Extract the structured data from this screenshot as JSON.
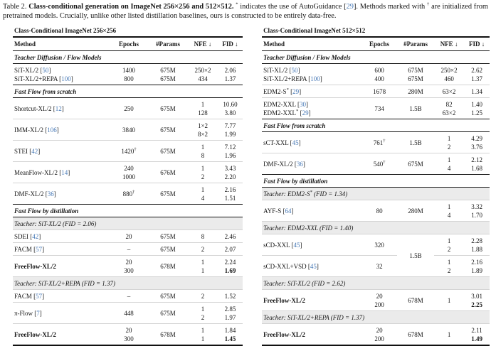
{
  "caption": "Table 2. **Class-conditional generation on ImageNet 256×256 and 512×512.** ^{*} indicates the use of AutoGuidance [29]. Methods marked with ^{†} are initialized from pretrained models. Crucially, unlike other listed distillation baselines, ours is constructed to be entirely data-free.",
  "columns": [
    "Method",
    "Epochs",
    "#Params",
    "NFE ↓",
    "FID ↓"
  ],
  "accent_colors": {
    "citation_blue": "#4577b5",
    "teacher_band_gray": "#ebebeb"
  },
  "tables": [
    {
      "title": "Class-Conditional ImageNet 256×256",
      "rows": [
        {
          "type": "section",
          "first": true,
          "label": "Teacher Diffusion / Flow Models"
        },
        {
          "type": "row",
          "method": "SiT-XL/2 [50]\nSiT-XL/2+REPA [100]",
          "epochs": "1400\n800",
          "params": "675M\n675M",
          "nfe": "250×2\n434",
          "fid": "2.06\n1.37"
        },
        {
          "type": "section",
          "label": "Fast Flow from scratch"
        },
        {
          "type": "row",
          "method": "Shortcut-XL/2 [12]",
          "epochs": "250",
          "params": "675M",
          "nfe": "1\n128",
          "fid": "10.60\n3.80"
        },
        {
          "type": "row",
          "method": "IMM-XL/2 [106]",
          "epochs": "3840",
          "params": "675M",
          "nfe": "1×2\n8×2",
          "fid": "7.77\n1.99"
        },
        {
          "type": "row",
          "method": "STEI [42]",
          "epochs": "1420^{†}",
          "params": "675M",
          "nfe": "1\n8",
          "fid": "7.12\n1.96"
        },
        {
          "type": "row",
          "method": "MeanFlow-XL/2 [14]",
          "epochs": "240\n1000",
          "params": "676M",
          "nfe": "1\n2",
          "fid": "3.43\n2.20"
        },
        {
          "type": "row",
          "method": "DMF-XL/2 [36]",
          "epochs": "880^{†}",
          "params": "675M",
          "nfe": "1\n4",
          "fid": "2.16\n1.51"
        },
        {
          "type": "section",
          "label": "Fast Flow by distillation"
        },
        {
          "type": "teacher",
          "label": "Teacher: SiT-XL/2 (FID = 2.06)"
        },
        {
          "type": "row",
          "method": "SDEI [42]",
          "epochs": "20",
          "params": "675M",
          "nfe": "8",
          "fid": "2.46"
        },
        {
          "type": "row",
          "method": "FACM [57]",
          "epochs": "–",
          "params": "675M",
          "nfe": "2",
          "fid": "2.07"
        },
        {
          "type": "row",
          "method": "**FreeFlow-XL/2**",
          "epochs": "20\n300",
          "params": "678M",
          "nfe": "1\n1",
          "fid": "2.24\n**1.69**"
        },
        {
          "type": "teacher",
          "label": "Teacher: SiT-XL/2+REPA (FID = 1.37)"
        },
        {
          "type": "row",
          "method": "FACM [57]",
          "epochs": "–",
          "params": "675M",
          "nfe": "2",
          "fid": "1.52"
        },
        {
          "type": "row",
          "method": "π-Flow [7]",
          "epochs": "448",
          "params": "675M",
          "nfe": "1\n2",
          "fid": "2.85\n1.97"
        },
        {
          "type": "row",
          "method": "**FreeFlow-XL/2**",
          "epochs": "20\n300",
          "params": "678M",
          "nfe": "1\n1",
          "fid": "1.84\n**1.45**"
        }
      ]
    },
    {
      "title": "Class-Conditional ImageNet 512×512",
      "rows": [
        {
          "type": "section",
          "first": true,
          "label": "Teacher Diffusion / Flow Models"
        },
        {
          "type": "row",
          "method": "SiT-XL/2 [50]\nSiT-XL/2+REPA [100]",
          "epochs": "600\n400",
          "params": "675M\n675M",
          "nfe": "250×2\n460",
          "fid": "2.62\n1.37"
        },
        {
          "type": "row",
          "method": "EDM2-S^{*} [29]",
          "epochs": "1678",
          "params": "280M",
          "nfe": "63×2",
          "fid": "1.34"
        },
        {
          "type": "row",
          "method": "EDM2-XXL [30]\nEDM2-XXL^{*} [29]",
          "epochs": "734",
          "params": "1.5B",
          "nfe": "82\n63×2",
          "fid": "1.40\n1.25"
        },
        {
          "type": "section",
          "label": "Fast Flow from scratch"
        },
        {
          "type": "row",
          "method": "sCT-XXL [45]",
          "epochs": "761^{†}",
          "params": "1.5B",
          "nfe": "1\n2",
          "fid": "4.29\n3.76"
        },
        {
          "type": "row",
          "method": "DMF-XL/2 [36]",
          "epochs": "540^{†}",
          "params": "675M",
          "nfe": "1\n4",
          "fid": "2.12\n1.68"
        },
        {
          "type": "section",
          "label": "Fast Flow by distillation"
        },
        {
          "type": "teacher",
          "label": "Teacher: EDM2-S^{*} (FID = 1.34)"
        },
        {
          "type": "row",
          "method": "AYF-S [64]",
          "epochs": "80",
          "params": "280M",
          "nfe": "1\n4",
          "fid": "3.32\n1.70"
        },
        {
          "type": "teacher",
          "label": "Teacher: EDM2-XXL (FID = 1.40)"
        },
        {
          "type": "row",
          "method": "sCD-XXL [45]",
          "epochs": "320",
          "params": "1.5B",
          "params_span": 2,
          "nfe": "1\n2",
          "fid": "2.28\n1.88"
        },
        {
          "type": "row",
          "method": "sCD-XXL+VSD [45]",
          "epochs": "32",
          "params": null,
          "nfe": "1\n2",
          "fid": "2.16\n1.89"
        },
        {
          "type": "teacher",
          "label": "Teacher: SiT-XL/2 (FID = 2.62)"
        },
        {
          "type": "row",
          "method": "**FreeFlow-XL/2**",
          "epochs": "20\n200",
          "params": "678M",
          "nfe": "1",
          "fid": "3.01\n**2.25**"
        },
        {
          "type": "teacher",
          "label": "Teacher: SiT-XL/2+REPA (FID = 1.37)"
        },
        {
          "type": "row",
          "method": "**FreeFlow-XL/2**",
          "epochs": "20\n200",
          "params": "678M",
          "nfe": "1",
          "fid": "2.11\n**1.49**"
        }
      ]
    }
  ]
}
